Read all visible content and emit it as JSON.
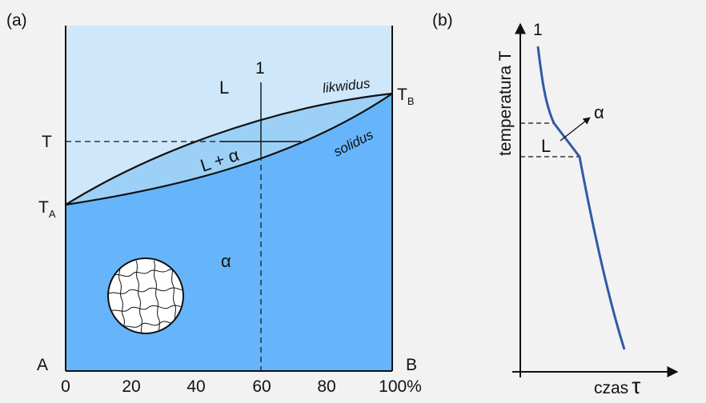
{
  "panels": {
    "a": {
      "label": "(a)",
      "corner_left": "A",
      "corner_right": "B",
      "x_ticks": [
        "0",
        "20",
        "40",
        "60",
        "80",
        "100%"
      ],
      "x_range": [
        0,
        100
      ],
      "t_a": {
        "main": "T",
        "sub": "A"
      },
      "t_b": {
        "main": "T",
        "sub": "B"
      },
      "t_level_label": "T",
      "alloy_line_label": "1",
      "alloy_composition": 60,
      "liquidus_label": "likwidus",
      "solidus_label": "solidus",
      "region_liquid": "L",
      "region_two_phase": "L + α",
      "region_solid": "α",
      "colors": {
        "liquid": "#cfe7fb",
        "two_phase": "#9dd0f7",
        "solid": "#66b5fa",
        "lines": "#111111"
      }
    },
    "b": {
      "label": "(b)",
      "curve_label": "1",
      "y_axis_label": "temperatura T",
      "x_axis_label": "czas",
      "x_axis_symbol": "τ",
      "segment_liquid": "L",
      "segment_solid": "α",
      "curve_color": "#2f5aa8"
    }
  }
}
